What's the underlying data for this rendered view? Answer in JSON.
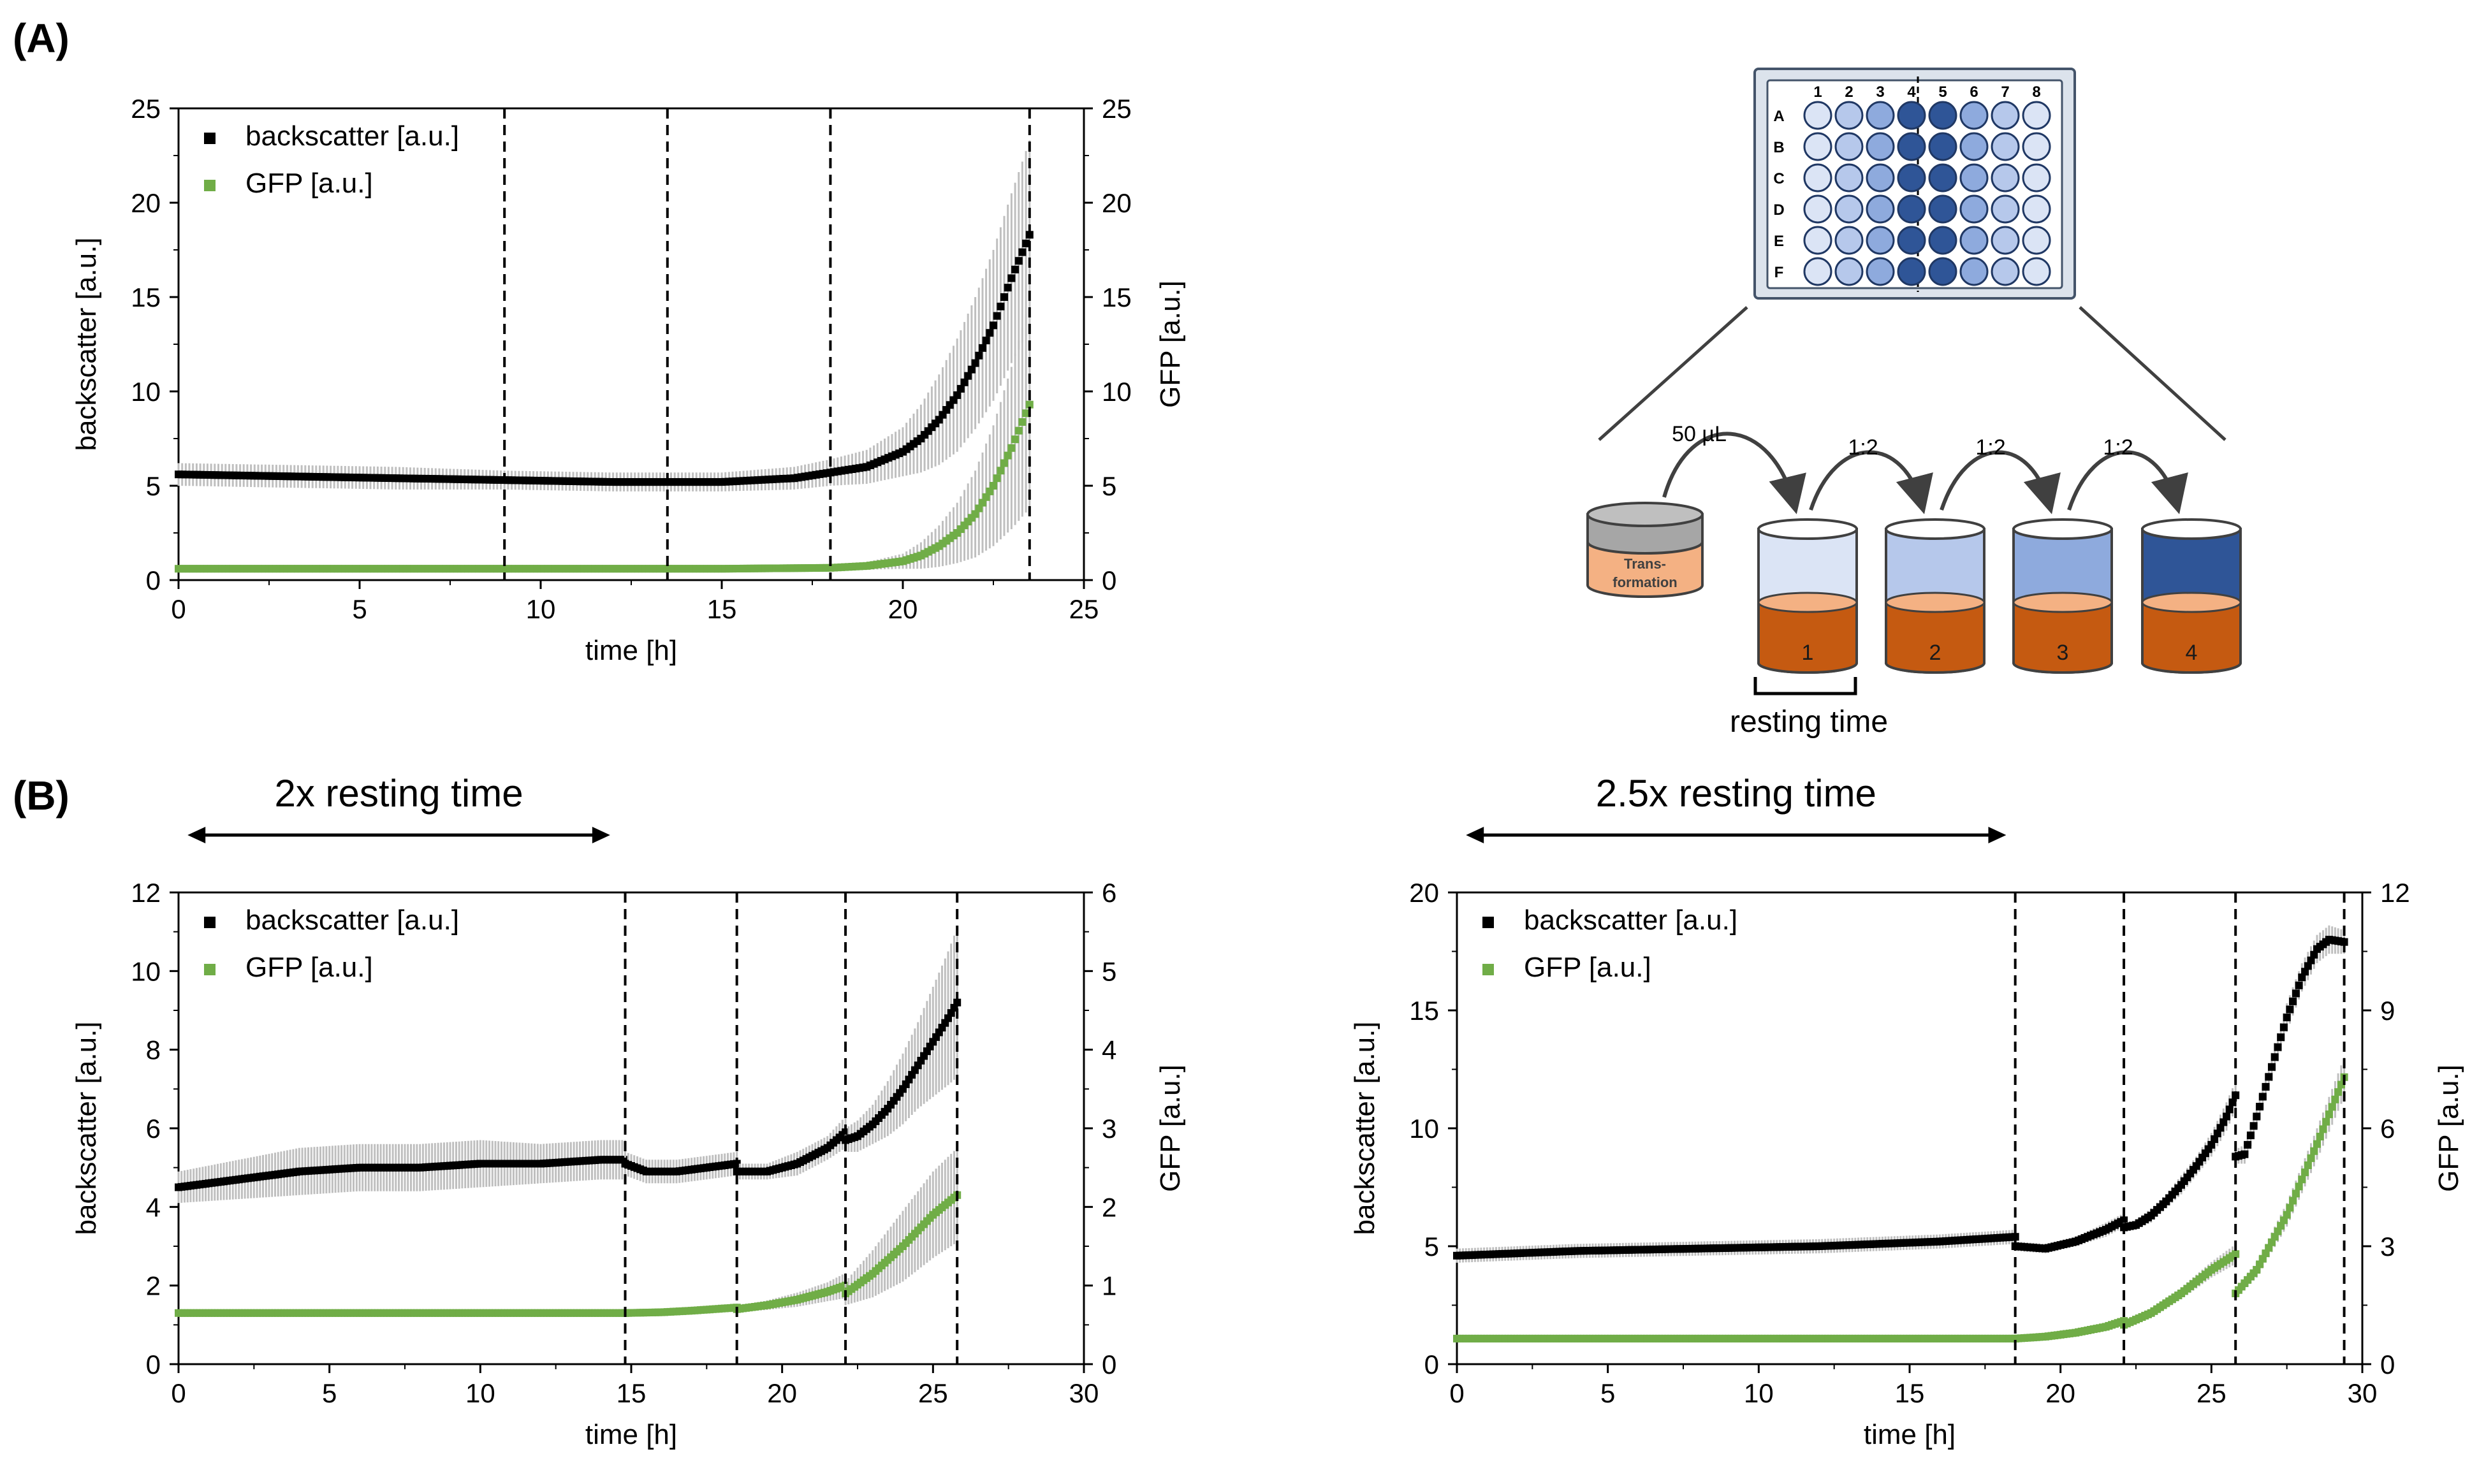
{
  "panel_labels": {
    "a": "(A)",
    "b": "(B)"
  },
  "diagram": {
    "plate_columns": [
      "1",
      "2",
      "3",
      "4",
      "5",
      "6",
      "7",
      "8"
    ],
    "plate_rows": [
      "A",
      "B",
      "C",
      "D",
      "E",
      "F"
    ],
    "plate_column_colors": [
      "#dbe4f5",
      "#b6c8eb",
      "#8eaadd",
      "#2f5597",
      "#2f5597",
      "#8eaadd",
      "#b6c8eb",
      "#dbe4f5"
    ],
    "transformation_label_line1": "Trans-",
    "transformation_label_line2": "formation",
    "transfer_labels": [
      "50 µL",
      "1:2",
      "1:2",
      "1:2"
    ],
    "well_labels": [
      "1",
      "2",
      "3",
      "4"
    ],
    "well_top_colors": [
      "#dbe4f5",
      "#b6c8eb",
      "#8eaadd",
      "#2f5597"
    ],
    "medium_color": "#c55a11",
    "resting_time_label": "resting time"
  },
  "chart_data": [
    {
      "id": "A",
      "type": "scatter",
      "xlabel": "time [h]",
      "ylabel_left": "backscatter [a.u.]",
      "ylabel_right": "GFP [a.u.]",
      "xlim": [
        0,
        25
      ],
      "xticks": [
        "0",
        "5",
        "10",
        "15",
        "20",
        "25"
      ],
      "ylim_left": [
        0,
        25
      ],
      "yticks_left": [
        "0",
        "5",
        "10",
        "15",
        "20",
        "25"
      ],
      "ylim_right": [
        0,
        25
      ],
      "yticks_right": [
        "0",
        "5",
        "10",
        "15",
        "20",
        "25"
      ],
      "legend": [
        "backscatter [a.u.]",
        "GFP [a.u.]"
      ],
      "dashed_lines_x": [
        9,
        13.5,
        18,
        23.5
      ],
      "series": [
        {
          "name": "backscatter [a.u.]",
          "color": "#000000",
          "axis": "left",
          "x": [
            0,
            3,
            6,
            9,
            12,
            15,
            17,
            18,
            19,
            20,
            20.5,
            21,
            21.5,
            22,
            22.5,
            23,
            23.5
          ],
          "y": [
            5.6,
            5.5,
            5.4,
            5.3,
            5.2,
            5.2,
            5.4,
            5.7,
            6.0,
            6.8,
            7.5,
            8.5,
            9.8,
            11.5,
            13.5,
            16.0,
            18.3
          ],
          "err": [
            0.6,
            0.6,
            0.6,
            0.5,
            0.5,
            0.5,
            0.6,
            0.7,
            0.9,
            1.3,
            1.8,
            2.4,
            3.0,
            3.5,
            4.0,
            4.5,
            5.0
          ]
        },
        {
          "name": "GFP [a.u.]",
          "color": "#70ad47",
          "axis": "right",
          "x": [
            0,
            5,
            10,
            15,
            18,
            19,
            20,
            20.5,
            21,
            21.5,
            22,
            22.5,
            23,
            23.5
          ],
          "y": [
            0.6,
            0.6,
            0.6,
            0.6,
            0.65,
            0.75,
            1.0,
            1.3,
            1.8,
            2.5,
            3.5,
            5.0,
            7.0,
            9.3
          ],
          "err": [
            0.05,
            0.05,
            0.05,
            0.05,
            0.1,
            0.2,
            0.4,
            0.7,
            1.1,
            1.6,
            2.3,
            3.2,
            4.3,
            5.5
          ]
        }
      ]
    },
    {
      "id": "B1",
      "type": "scatter",
      "annotation": "2x resting time",
      "arrow_x": [
        0.3,
        14.3
      ],
      "xlabel": "time [h]",
      "ylabel_left": "backscatter [a.u.]",
      "ylabel_right": "GFP [a.u.]",
      "xlim": [
        0,
        30
      ],
      "xticks": [
        "0",
        "5",
        "10",
        "15",
        "20",
        "25",
        "30"
      ],
      "ylim_left": [
        0,
        12
      ],
      "yticks_left": [
        "0",
        "2",
        "4",
        "6",
        "8",
        "10",
        "12"
      ],
      "ylim_right": [
        0,
        6
      ],
      "yticks_right": [
        "0",
        "1",
        "2",
        "3",
        "4",
        "5",
        "6"
      ],
      "legend": [
        "backscatter [a.u.]",
        "GFP [a.u.]"
      ],
      "dashed_lines_x": [
        14.8,
        18.5,
        22.1,
        25.8
      ],
      "series": [
        {
          "name": "backscatter [a.u.]",
          "color": "#000000",
          "axis": "left",
          "segments": [
            {
              "x": [
                0,
                2,
                4,
                6,
                8,
                10,
                12,
                14,
                14.8
              ],
              "y": [
                4.5,
                4.7,
                4.9,
                5.0,
                5.0,
                5.1,
                5.1,
                5.2,
                5.2
              ],
              "err": [
                0.4,
                0.5,
                0.6,
                0.6,
                0.6,
                0.6,
                0.5,
                0.5,
                0.5
              ]
            },
            {
              "x": [
                14.8,
                15.5,
                16.5,
                17.5,
                18.5
              ],
              "y": [
                5.1,
                4.9,
                4.9,
                5.0,
                5.1
              ],
              "err": [
                0.3,
                0.3,
                0.3,
                0.3,
                0.3
              ]
            },
            {
              "x": [
                18.5,
                19.5,
                20.5,
                21.5,
                22.1
              ],
              "y": [
                4.9,
                4.9,
                5.1,
                5.5,
                5.9
              ],
              "err": [
                0.2,
                0.2,
                0.3,
                0.3,
                0.4
              ]
            },
            {
              "x": [
                22.1,
                22.5,
                23,
                23.5,
                24,
                24.5,
                25,
                25.5,
                25.8
              ],
              "y": [
                5.7,
                5.8,
                6.1,
                6.5,
                7.0,
                7.6,
                8.2,
                8.8,
                9.2
              ],
              "err": [
                0.3,
                0.4,
                0.5,
                0.7,
                0.9,
                1.1,
                1.4,
                1.7,
                1.9
              ]
            }
          ]
        },
        {
          "name": "GFP [a.u.]",
          "color": "#70ad47",
          "axis": "right",
          "segments": [
            {
              "x": [
                0,
                5,
                10,
                14.8
              ],
              "y": [
                0.65,
                0.65,
                0.65,
                0.65
              ],
              "err": [
                0.03,
                0.03,
                0.03,
                0.04
              ]
            },
            {
              "x": [
                14.8,
                16,
                17,
                18.5
              ],
              "y": [
                0.65,
                0.66,
                0.68,
                0.72
              ],
              "err": [
                0.03,
                0.03,
                0.04,
                0.05
              ]
            },
            {
              "x": [
                18.5,
                19.5,
                20.5,
                21.5,
                22.1
              ],
              "y": [
                0.7,
                0.75,
                0.82,
                0.92,
                1.0
              ],
              "err": [
                0.04,
                0.06,
                0.09,
                0.12,
                0.16
              ]
            },
            {
              "x": [
                22.1,
                23,
                24,
                25,
                25.8
              ],
              "y": [
                0.9,
                1.15,
                1.5,
                1.9,
                2.15
              ],
              "err": [
                0.15,
                0.3,
                0.45,
                0.55,
                0.6
              ]
            }
          ]
        }
      ]
    },
    {
      "id": "B2",
      "type": "scatter",
      "annotation": "2.5x resting time",
      "arrow_x": [
        0.3,
        18.2
      ],
      "xlabel": "time [h]",
      "ylabel_left": "backscatter [a.u.]",
      "ylabel_right": "GFP [a.u.]",
      "xlim": [
        0,
        30
      ],
      "xticks": [
        "0",
        "5",
        "10",
        "15",
        "20",
        "25",
        "30"
      ],
      "ylim_left": [
        0,
        20
      ],
      "yticks_left": [
        "0",
        "5",
        "10",
        "15",
        "20"
      ],
      "ylim_right": [
        0,
        12
      ],
      "yticks_right": [
        "0",
        "3",
        "6",
        "9",
        "12"
      ],
      "legend": [
        "backscatter [a.u.]",
        "GFP [a.u.]"
      ],
      "dashed_lines_x": [
        18.5,
        22.1,
        25.8,
        29.4
      ],
      "series": [
        {
          "name": "backscatter [a.u.]",
          "color": "#000000",
          "axis": "left",
          "segments": [
            {
              "x": [
                0,
                4,
                8,
                12,
                16,
                18.5
              ],
              "y": [
                4.6,
                4.8,
                4.9,
                5.0,
                5.2,
                5.4
              ],
              "err": [
                0.3,
                0.3,
                0.3,
                0.3,
                0.3,
                0.3
              ]
            },
            {
              "x": [
                18.5,
                19.5,
                20.5,
                21.5,
                22.1
              ],
              "y": [
                5.0,
                4.9,
                5.2,
                5.7,
                6.1
              ],
              "err": [
                0.2,
                0.2,
                0.2,
                0.3,
                0.3
              ]
            },
            {
              "x": [
                22.1,
                22.5,
                23,
                23.5,
                24,
                24.5,
                25,
                25.5,
                25.8
              ],
              "y": [
                5.8,
                5.9,
                6.3,
                6.9,
                7.6,
                8.4,
                9.3,
                10.5,
                11.4
              ],
              "err": [
                0.2,
                0.2,
                0.3,
                0.3,
                0.4,
                0.4,
                0.5,
                0.6,
                0.6
              ]
            },
            {
              "x": [
                25.8,
                26.1,
                26.5,
                27,
                27.5,
                28,
                28.5,
                28.9,
                29.4
              ],
              "y": [
                8.8,
                8.9,
                10.5,
                12.6,
                14.7,
                16.4,
                17.6,
                18.0,
                17.9
              ],
              "err": [
                0.3,
                0.4,
                0.5,
                0.6,
                0.6,
                0.6,
                0.6,
                0.6,
                0.5
              ]
            }
          ]
        },
        {
          "name": "GFP [a.u.]",
          "color": "#70ad47",
          "axis": "right",
          "segments": [
            {
              "x": [
                0,
                5,
                10,
                15,
                18.5
              ],
              "y": [
                0.65,
                0.65,
                0.65,
                0.65,
                0.65
              ],
              "err": [
                0.03,
                0.03,
                0.03,
                0.03,
                0.03
              ]
            },
            {
              "x": [
                18.5,
                19.5,
                20.5,
                21.5,
                22.1
              ],
              "y": [
                0.65,
                0.7,
                0.8,
                0.95,
                1.1
              ],
              "err": [
                0.03,
                0.04,
                0.05,
                0.06,
                0.07
              ]
            },
            {
              "x": [
                22.1,
                23,
                24,
                25,
                25.8
              ],
              "y": [
                1.0,
                1.3,
                1.8,
                2.4,
                2.8
              ],
              "err": [
                0.05,
                0.1,
                0.15,
                0.2,
                0.25
              ]
            },
            {
              "x": [
                25.8,
                26.5,
                27.5,
                28.5,
                29.4
              ],
              "y": [
                1.8,
                2.4,
                3.8,
                5.6,
                7.3
              ],
              "err": [
                0.1,
                0.2,
                0.3,
                0.4,
                0.5
              ]
            }
          ]
        }
      ]
    }
  ]
}
